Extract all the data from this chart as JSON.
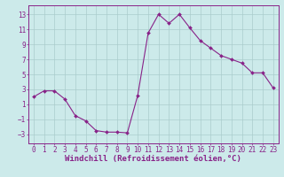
{
  "x": [
    0,
    1,
    2,
    3,
    4,
    5,
    6,
    7,
    8,
    9,
    10,
    11,
    12,
    13,
    14,
    15,
    16,
    17,
    18,
    19,
    20,
    21,
    22,
    23
  ],
  "y": [
    2.0,
    2.8,
    2.8,
    1.7,
    -0.5,
    -1.2,
    -2.5,
    -2.7,
    -2.7,
    -2.8,
    2.2,
    10.5,
    13.0,
    11.8,
    13.0,
    11.2,
    9.5,
    8.5,
    7.5,
    7.0,
    6.5,
    5.2,
    5.2,
    3.2
  ],
  "line_color": "#882288",
  "marker": "D",
  "marker_size": 2.0,
  "xlabel": "Windchill (Refroidissement éolien,°C)",
  "yticks": [
    -3,
    -1,
    1,
    3,
    5,
    7,
    9,
    11,
    13
  ],
  "xticks": [
    0,
    1,
    2,
    3,
    4,
    5,
    6,
    7,
    8,
    9,
    10,
    11,
    12,
    13,
    14,
    15,
    16,
    17,
    18,
    19,
    20,
    21,
    22,
    23
  ],
  "ylim": [
    -4.2,
    14.2
  ],
  "xlim": [
    -0.5,
    23.5
  ],
  "background_color": "#cceaea",
  "grid_color": "#aacccc",
  "axis_label_color": "#882288",
  "tick_label_color": "#882288",
  "xlabel_fontsize": 6.5,
  "tick_fontsize": 5.5,
  "linewidth": 0.8
}
